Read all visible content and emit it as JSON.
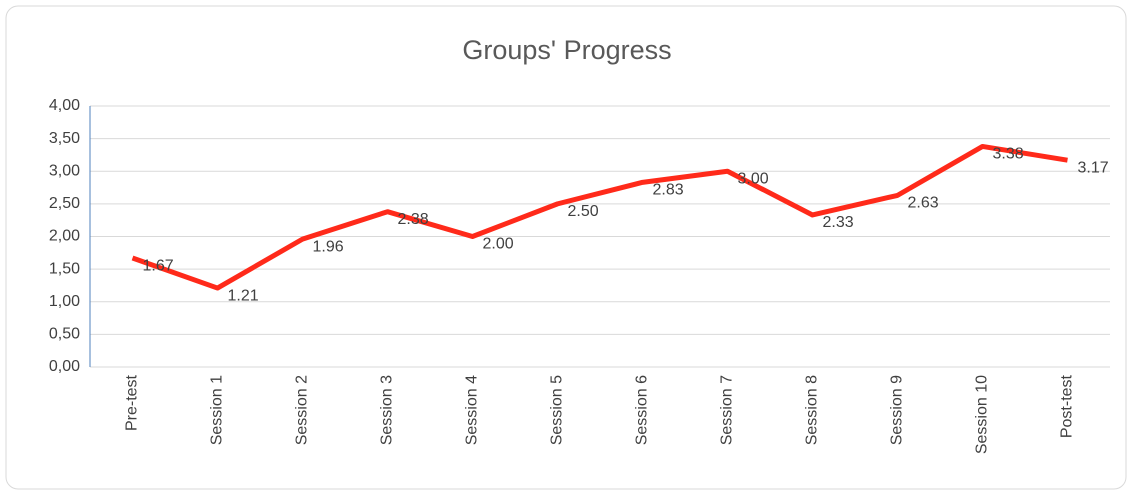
{
  "chart_data": {
    "type": "line",
    "title": "Groups' Progress",
    "categories": [
      "Pre-test",
      "Session 1",
      "Session 2",
      "Session 3",
      "Session 4",
      "Session 5",
      "Session 6",
      "Session 7",
      "Session 8",
      "Session 9",
      "Session 10",
      "Post-test"
    ],
    "series": [
      {
        "name": "Groups' Progress",
        "color": "#ff2a1a",
        "values": [
          1.67,
          1.21,
          1.96,
          2.38,
          2.0,
          2.5,
          2.83,
          3.0,
          2.33,
          2.63,
          3.38,
          3.17
        ],
        "value_labels": [
          "1.67",
          "1.21",
          "1.96",
          "2.38",
          "2.00",
          "2.50",
          "2.83",
          "3.00",
          "2.33",
          "2.63",
          "3.38",
          "3.17"
        ]
      }
    ],
    "ylim": [
      0,
      4
    ],
    "yticks": [
      {
        "value": 0,
        "label": "0,00"
      },
      {
        "value": 0.5,
        "label": "0,50"
      },
      {
        "value": 1,
        "label": "1,00"
      },
      {
        "value": 1.5,
        "label": "1,50"
      },
      {
        "value": 2,
        "label": "2,00"
      },
      {
        "value": 2.5,
        "label": "2,50"
      },
      {
        "value": 3,
        "label": "3,00"
      },
      {
        "value": 3.5,
        "label": "3,50"
      },
      {
        "value": 4,
        "label": "4,00"
      }
    ],
    "grid": true
  }
}
